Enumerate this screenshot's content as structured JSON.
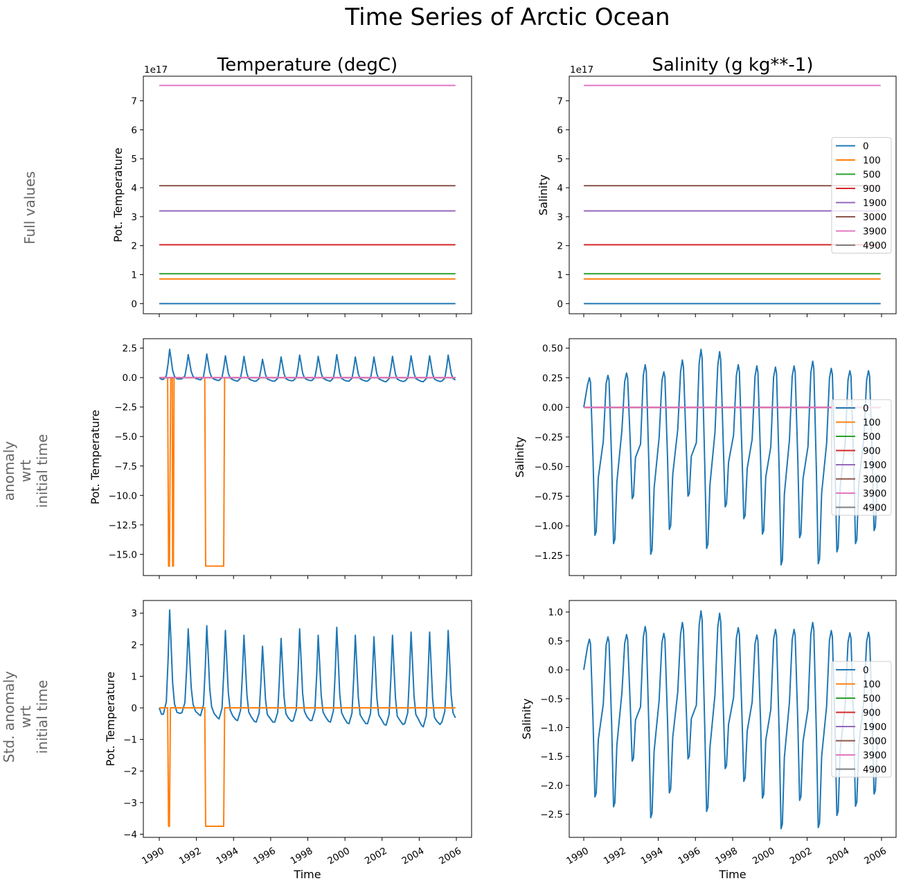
{
  "title": "Time Series of Arctic Ocean",
  "column_titles": [
    "Temperature (degC)",
    "Salinity (g kg**-1)"
  ],
  "row_labels": [
    [
      "Full values"
    ],
    [
      "anomaly",
      "wrt",
      "initial time"
    ],
    [
      "Std. anomaly",
      "wrt",
      "initial time"
    ]
  ],
  "colors": {
    "0": "#1f77b4",
    "100": "#ff7f0e",
    "500": "#2ca02c",
    "900": "#d62728",
    "1900": "#9467bd",
    "3000": "#8c564b",
    "3900": "#e377c2",
    "4900": "#7f7f7f"
  },
  "legend_entries": [
    "0",
    "100",
    "500",
    "900",
    "1900",
    "3000",
    "3900",
    "4900"
  ],
  "chart_data": [
    {
      "type": "line",
      "panel": "full-temperature",
      "ylabel": "Pot. Temperature",
      "offset_text": "1e17",
      "xlim": [
        1990,
        2006
      ],
      "ylim": [
        -0.35,
        7.85
      ],
      "yticks": [
        0,
        1,
        2,
        3,
        4,
        5,
        6,
        7
      ],
      "ytick_labels": [
        "0",
        "1",
        "2",
        "3",
        "4",
        "5",
        "6",
        "7"
      ],
      "show_xticklabels": false,
      "legend": false,
      "constant_series": {
        "0": 0,
        "100": 0.85,
        "500": 1.03,
        "900": 2.03,
        "1900": 3.2,
        "3000": 4.07,
        "3900": 7.53
      }
    },
    {
      "type": "line",
      "panel": "full-salinity",
      "ylabel": "Salinity",
      "offset_text": "1e17",
      "xlim": [
        1990,
        2006
      ],
      "ylim": [
        -0.35,
        7.85
      ],
      "yticks": [
        0,
        1,
        2,
        3,
        4,
        5,
        6,
        7
      ],
      "ytick_labels": [
        "0",
        "1",
        "2",
        "3",
        "4",
        "5",
        "6",
        "7"
      ],
      "show_xticklabels": false,
      "legend": "center-right",
      "constant_series": {
        "0": 0,
        "100": 0.85,
        "500": 1.03,
        "900": 2.03,
        "1900": 3.2,
        "3000": 4.07,
        "3900": 7.53
      }
    },
    {
      "type": "line",
      "panel": "anomaly-temperature",
      "ylabel": "Pot. Temperature",
      "xlim": [
        1990,
        2006
      ],
      "ylim": [
        -16.8,
        3.3
      ],
      "yticks": [
        2.5,
        0,
        -2.5,
        -5,
        -7.5,
        -10,
        -12.5,
        -15
      ],
      "ytick_labels": [
        "2.5",
        "0.0",
        "−2.5",
        "−5.0",
        "−7.5",
        "−10.0",
        "−12.5",
        "−15.0"
      ],
      "show_xticklabels": false,
      "legend": false,
      "seasonal": {
        "kind": "temperature",
        "peaks": [
          2.4,
          1.95,
          2.0,
          1.85,
          1.8,
          1.55,
          1.75,
          1.9,
          1.8,
          1.95,
          1.75,
          1.75,
          1.8,
          1.85,
          1.85,
          1.9
        ],
        "troughs": [
          -0.15,
          -0.1,
          -0.2,
          -0.25,
          -0.3,
          -0.3,
          -0.3,
          -0.25,
          -0.25,
          -0.3,
          -0.3,
          -0.3,
          -0.35,
          -0.3,
          -0.35,
          -0.3
        ]
      },
      "series_100": [
        [
          1990,
          0
        ],
        [
          1990.45,
          0
        ],
        [
          1990.5,
          -16
        ],
        [
          1990.55,
          -16
        ],
        [
          1990.62,
          0
        ],
        [
          1990.7,
          0
        ],
        [
          1990.72,
          -16
        ],
        [
          1990.76,
          -16
        ],
        [
          1990.8,
          0
        ],
        [
          1992.45,
          0
        ],
        [
          1992.5,
          -16
        ],
        [
          1993.47,
          -16
        ],
        [
          1993.52,
          0
        ],
        [
          2005.95,
          0
        ]
      ],
      "zero_series": [
        "500",
        "900",
        "1900",
        "3000",
        "3900"
      ]
    },
    {
      "type": "line",
      "panel": "anomaly-salinity",
      "ylabel": "Salinity",
      "xlim": [
        1990,
        2006
      ],
      "ylim": [
        -1.42,
        0.58
      ],
      "yticks": [
        0.5,
        0.25,
        0,
        -0.25,
        -0.5,
        -0.75,
        -1,
        -1.25
      ],
      "ytick_labels": [
        "0.50",
        "0.25",
        "0.00",
        "−0.25",
        "−0.50",
        "−0.75",
        "−1.00",
        "−1.25"
      ],
      "show_xticklabels": false,
      "legend": "center-right",
      "seasonal": {
        "kind": "salinity",
        "peaks": [
          0.25,
          0.27,
          0.29,
          0.36,
          0.3,
          0.4,
          0.49,
          0.47,
          0.36,
          0.35,
          0.34,
          0.35,
          0.39,
          0.33,
          0.31,
          0.31
        ],
        "troughs": [
          -1.08,
          -1.15,
          -0.77,
          -1.24,
          -1.03,
          -0.75,
          -1.19,
          -0.84,
          -0.94,
          -1.07,
          -1.33,
          -1.1,
          -1.32,
          -1.22,
          -1.15,
          -1.04
        ]
      },
      "zero_series": [
        "100",
        "500",
        "900",
        "1900",
        "3000",
        "3900"
      ]
    },
    {
      "type": "line",
      "panel": "std-anomaly-temperature",
      "ylabel": "Pot. Temperature",
      "xlabel": "Time",
      "xlim": [
        1990,
        2006
      ],
      "ylim": [
        -4.1,
        3.4
      ],
      "yticks": [
        3,
        2,
        1,
        0,
        -1,
        -2,
        -3,
        -4
      ],
      "ytick_labels": [
        "3",
        "2",
        "1",
        "0",
        "−1",
        "−2",
        "−3",
        "−4"
      ],
      "show_xticklabels": true,
      "legend": false,
      "seasonal": {
        "kind": "temperature",
        "peaks": [
          3.1,
          2.5,
          2.6,
          2.45,
          2.3,
          1.95,
          2.2,
          2.5,
          2.3,
          2.55,
          2.3,
          2.25,
          2.3,
          2.4,
          2.4,
          2.45
        ],
        "troughs": [
          -0.2,
          -0.15,
          -0.25,
          -0.35,
          -0.4,
          -0.45,
          -0.45,
          -0.4,
          -0.4,
          -0.45,
          -0.5,
          -0.5,
          -0.55,
          -0.5,
          -0.6,
          -0.45
        ]
      },
      "series_100": [
        [
          1990,
          0
        ],
        [
          1990.45,
          0
        ],
        [
          1990.5,
          -3.75
        ],
        [
          1990.55,
          -3.75
        ],
        [
          1990.6,
          0
        ],
        [
          1992.45,
          0
        ],
        [
          1992.5,
          -3.75
        ],
        [
          1993.47,
          -3.75
        ],
        [
          1993.52,
          0
        ],
        [
          2005.95,
          0
        ]
      ],
      "zero_series": []
    },
    {
      "type": "line",
      "panel": "std-anomaly-salinity",
      "ylabel": "Salinity",
      "xlabel": "Time",
      "xlim": [
        1990,
        2006
      ],
      "ylim": [
        -2.9,
        1.2
      ],
      "yticks": [
        1,
        0.5,
        0,
        -0.5,
        -1,
        -1.5,
        -2,
        -2.5
      ],
      "ytick_labels": [
        "1.0",
        "0.5",
        "0.0",
        "−0.5",
        "−1.0",
        "−1.5",
        "−2.0",
        "−2.5"
      ],
      "show_xticklabels": true,
      "legend": "center-right",
      "seasonal": {
        "kind": "salinity",
        "peaks": [
          0.53,
          0.57,
          0.61,
          0.75,
          0.63,
          0.82,
          1.02,
          0.98,
          0.73,
          0.6,
          0.7,
          0.7,
          0.82,
          0.68,
          0.64,
          0.65
        ],
        "troughs": [
          -2.2,
          -2.37,
          -1.58,
          -2.56,
          -2.13,
          -1.54,
          -2.45,
          -1.71,
          -1.93,
          -2.22,
          -2.75,
          -2.26,
          -2.73,
          -2.52,
          -2.36,
          -2.15
        ]
      },
      "zero_series": []
    }
  ],
  "xtick_values": [
    1990,
    1992,
    1994,
    1996,
    1998,
    2000,
    2002,
    2004,
    2006
  ],
  "xtick_labels": [
    "1990",
    "1992",
    "1994",
    "1996",
    "1998",
    "2000",
    "2002",
    "2004",
    "2006"
  ]
}
